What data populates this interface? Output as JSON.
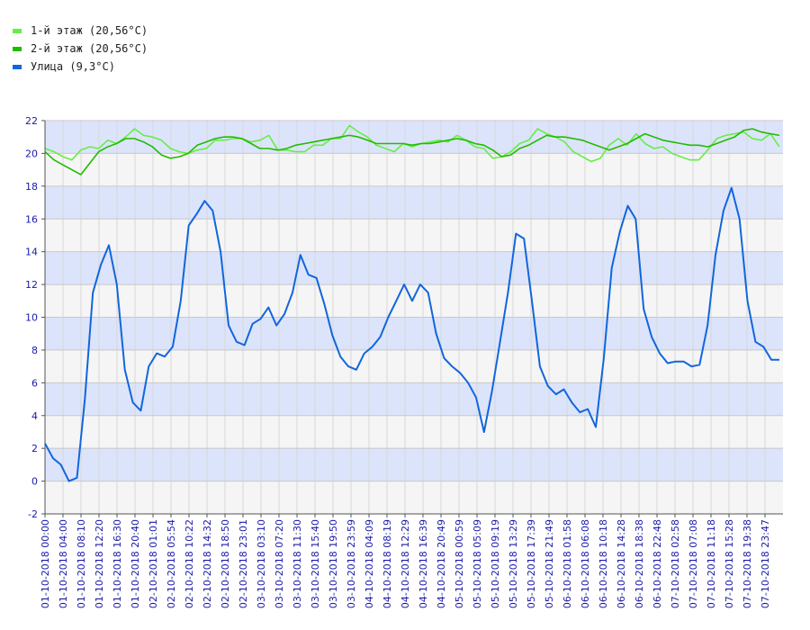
{
  "chart_data": {
    "type": "line",
    "title": "",
    "xlabel": "",
    "ylabel": "",
    "ylim": [
      -2,
      22
    ],
    "yticks": [
      -2,
      0,
      2,
      4,
      6,
      8,
      10,
      12,
      14,
      16,
      18,
      20,
      22
    ],
    "grid": true,
    "legend_position": "top-left",
    "band_colors": [
      "#dce4fb",
      "#f5f5f5"
    ],
    "xticks": [
      "01-10-2018 00:00",
      "01-10-2018 04:00",
      "01-10-2018 08:10",
      "01-10-2018 12:20",
      "01-10-2018 16:30",
      "01-10-2018 20:40",
      "02-10-2018 01:01",
      "02-10-2018 05:54",
      "02-10-2018 10:22",
      "02-10-2018 14:32",
      "02-10-2018 18:50",
      "02-10-2018 23:01",
      "03-10-2018 03:10",
      "03-10-2018 07:20",
      "03-10-2018 11:30",
      "03-10-2018 15:40",
      "03-10-2018 19:50",
      "03-10-2018 23:59",
      "04-10-2018 04:09",
      "04-10-2018 08:19",
      "04-10-2018 12:29",
      "04-10-2018 16:39",
      "04-10-2018 20:49",
      "05-10-2018 00:59",
      "05-10-2018 05:09",
      "05-10-2018 09:19",
      "05-10-2018 13:29",
      "05-10-2018 17:39",
      "05-10-2018 21:49",
      "06-10-2018 01:58",
      "06-10-2018 06:08",
      "06-10-2018 10:18",
      "06-10-2018 14:28",
      "06-10-2018 18:38",
      "06-10-2018 22:48",
      "07-10-2018 02:58",
      "07-10-2018 07:08",
      "07-10-2018 11:18",
      "07-10-2018 15:28",
      "07-10-2018 19:38",
      "07-10-2018 23:47"
    ],
    "series": [
      {
        "name": "1-й этаж (20,56°C)",
        "color": "#66ee44",
        "values": [
          20.3,
          20.1,
          19.8,
          19.6,
          20.2,
          20.4,
          20.3,
          20.8,
          20.6,
          21.0,
          21.5,
          21.1,
          21.0,
          20.8,
          20.3,
          20.1,
          20.0,
          20.2,
          20.3,
          20.8,
          20.8,
          20.9,
          20.9,
          20.7,
          20.8,
          21.1,
          20.2,
          20.2,
          20.1,
          20.1,
          20.5,
          20.5,
          20.9,
          20.9,
          21.7,
          21.3,
          21.0,
          20.5,
          20.3,
          20.1,
          20.6,
          20.4,
          20.6,
          20.7,
          20.8,
          20.7,
          21.1,
          20.8,
          20.4,
          20.3,
          19.7,
          19.8,
          20.1,
          20.6,
          20.8,
          21.5,
          21.2,
          21.0,
          20.7,
          20.1,
          19.8,
          19.5,
          19.7,
          20.5,
          20.9,
          20.5,
          21.2,
          20.6,
          20.3,
          20.4,
          20.0,
          19.8,
          19.6,
          19.6,
          20.2,
          20.9,
          21.1,
          21.2,
          21.3,
          20.9,
          20.8,
          21.2,
          20.4
        ]
      },
      {
        "name": "2-й этаж (20,56°C)",
        "color": "#22bb00",
        "values": [
          20.1,
          19.6,
          19.3,
          19.0,
          18.7,
          19.4,
          20.1,
          20.4,
          20.6,
          20.9,
          20.9,
          20.7,
          20.4,
          19.9,
          19.7,
          19.8,
          20.0,
          20.5,
          20.7,
          20.9,
          21.0,
          21.0,
          20.9,
          20.6,
          20.3,
          20.3,
          20.2,
          20.3,
          20.5,
          20.6,
          20.7,
          20.8,
          20.9,
          21.0,
          21.1,
          21.0,
          20.8,
          20.6,
          20.6,
          20.6,
          20.6,
          20.5,
          20.6,
          20.6,
          20.7,
          20.8,
          20.9,
          20.8,
          20.6,
          20.5,
          20.2,
          19.8,
          19.9,
          20.3,
          20.5,
          20.8,
          21.1,
          21.0,
          21.0,
          20.9,
          20.8,
          20.6,
          20.4,
          20.2,
          20.4,
          20.6,
          20.9,
          21.2,
          21.0,
          20.8,
          20.7,
          20.6,
          20.5,
          20.5,
          20.4,
          20.6,
          20.8,
          21.0,
          21.4,
          21.5,
          21.3,
          21.2,
          21.1
        ]
      },
      {
        "name": "Улица (9,3°C)",
        "color": "#1166dd",
        "values": [
          2.3,
          1.4,
          1.0,
          0.0,
          0.2,
          5.0,
          11.5,
          13.2,
          14.4,
          12.0,
          6.8,
          4.8,
          4.3,
          7.0,
          7.8,
          7.6,
          8.2,
          11.0,
          15.6,
          16.3,
          17.1,
          16.5,
          14.0,
          9.5,
          8.5,
          8.3,
          9.6,
          9.9,
          10.6,
          9.5,
          10.2,
          11.5,
          13.8,
          12.6,
          12.4,
          10.8,
          8.9,
          7.6,
          7.0,
          6.8,
          7.8,
          8.2,
          8.8,
          10.0,
          11.0,
          12.0,
          11.0,
          12.0,
          11.5,
          9.0,
          7.5,
          7.0,
          6.6,
          6.0,
          5.1,
          3.0,
          5.5,
          8.5,
          11.5,
          15.1,
          14.8,
          11.0,
          7.0,
          5.8,
          5.3,
          5.6,
          4.8,
          4.2,
          4.4,
          3.3,
          7.5,
          13.0,
          15.2,
          16.8,
          16.0,
          10.5,
          8.8,
          7.8,
          7.2,
          7.3,
          7.3,
          7.0,
          7.1,
          9.5,
          13.8,
          16.5,
          17.9,
          16.0,
          11.0,
          8.5,
          8.2,
          7.4,
          7.4
        ]
      }
    ]
  }
}
